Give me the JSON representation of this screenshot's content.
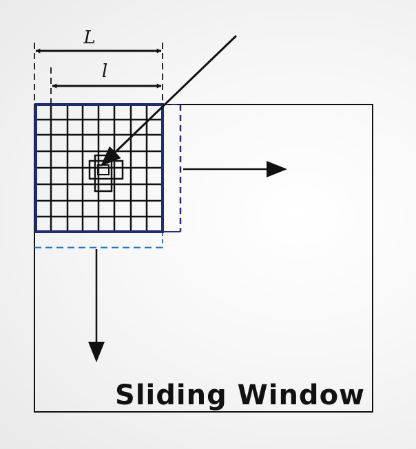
{
  "diagram": {
    "caption": "Sliding Window",
    "outer_dimension_label": "L",
    "inner_dimension_label": "l",
    "colors": {
      "ink": "#111111",
      "window_border": "#1f2d6e",
      "dashed_right": "#3a1f7a",
      "dashed_bottom": "#2a78b8"
    }
  }
}
